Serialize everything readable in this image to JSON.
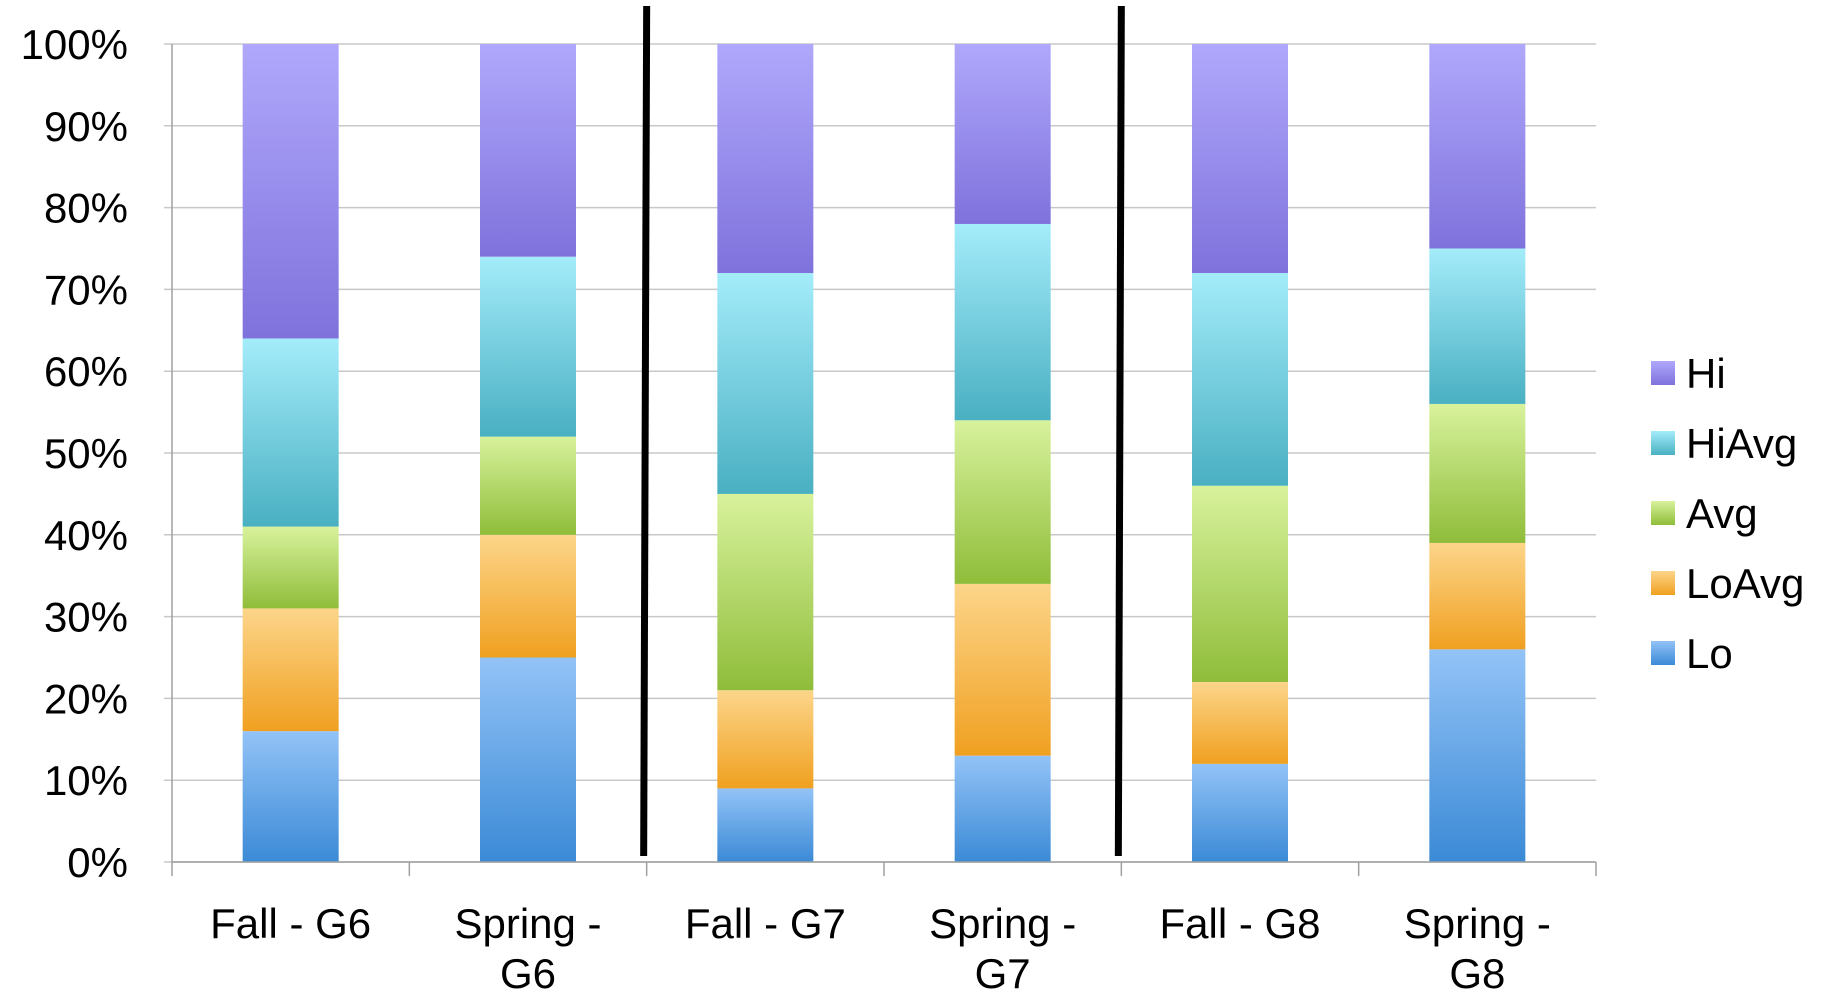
{
  "chart_data": {
    "type": "bar",
    "stacked": true,
    "percent_stacked": true,
    "categories": [
      [
        "Fall - G6"
      ],
      [
        "Spring -",
        "G6"
      ],
      [
        "Fall - G7"
      ],
      [
        "Spring -",
        "G7"
      ],
      [
        "Fall - G8"
      ],
      [
        "Spring -",
        "G8"
      ]
    ],
    "series": [
      {
        "name": "Lo",
        "color": "#3b8ad6",
        "color_light": "#93c3f7",
        "values": [
          16,
          25,
          9,
          13,
          12,
          26
        ]
      },
      {
        "name": "LoAvg",
        "color": "#f0a020",
        "color_light": "#fcd58a",
        "values": [
          15,
          15,
          12,
          21,
          10,
          13
        ]
      },
      {
        "name": "Avg",
        "color": "#8fbd3a",
        "color_light": "#d8f29c",
        "values": [
          10,
          12,
          24,
          20,
          24,
          17
        ]
      },
      {
        "name": "HiAvg",
        "color": "#49b0c2",
        "color_light": "#a4ecfa",
        "values": [
          23,
          22,
          27,
          24,
          26,
          19
        ]
      },
      {
        "name": "Hi",
        "color": "#7f72dc",
        "color_light": "#b0a8fc",
        "values": [
          36,
          26,
          28,
          22,
          28,
          25
        ]
      }
    ],
    "y_ticks": [
      "0%",
      "10%",
      "20%",
      "30%",
      "40%",
      "50%",
      "60%",
      "70%",
      "80%",
      "90%",
      "100%"
    ],
    "ylim": [
      0,
      100
    ],
    "grid": true,
    "legend_position": "right",
    "legend_order": [
      "Hi",
      "HiAvg",
      "Avg",
      "LoAvg",
      "Lo"
    ],
    "separators_after_category": [
      2,
      4
    ]
  }
}
